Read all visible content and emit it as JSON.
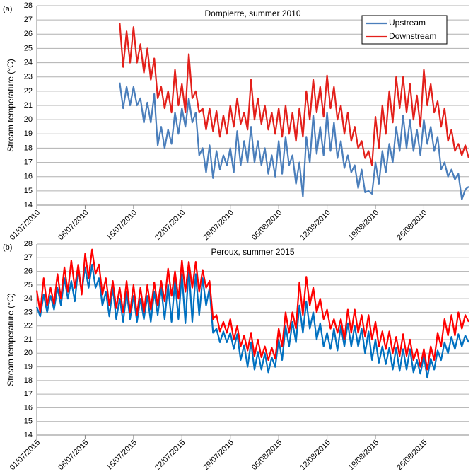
{
  "chart_data": [
    {
      "type": "line",
      "panel_label": "(a)",
      "title": "Dompierre,  summer  2010",
      "y_label": "Stream temperature (°C)",
      "legend": "upper right",
      "grid": true,
      "xlim": [
        0,
        62.5
      ],
      "ylim": [
        14,
        28
      ],
      "yticks": [
        14,
        15,
        16,
        17,
        18,
        19,
        20,
        21,
        22,
        23,
        24,
        25,
        26,
        27,
        28
      ],
      "xticks": [
        {
          "value": 0,
          "label": "01/07/2010"
        },
        {
          "value": 7,
          "label": "08/07/2010"
        },
        {
          "value": 14,
          "label": "15/07/2010"
        },
        {
          "value": 21,
          "label": "22/07/2010"
        },
        {
          "value": 28,
          "label": "29/07/2010"
        },
        {
          "value": 35,
          "label": "05/08/2010"
        },
        {
          "value": 42,
          "label": "12/08/2010"
        },
        {
          "value": 49,
          "label": "19/08/2010"
        },
        {
          "value": 56,
          "label": "26/08/2010"
        }
      ],
      "x": [
        12,
        12.5,
        13,
        13.5,
        14,
        14.5,
        15,
        15.5,
        16,
        16.5,
        17,
        17.5,
        18,
        18.5,
        19,
        19.5,
        20,
        20.5,
        21,
        21.5,
        22,
        22.5,
        23,
        23.5,
        24,
        24.5,
        25,
        25.5,
        26,
        26.5,
        27,
        27.5,
        28,
        28.5,
        29,
        29.5,
        30,
        30.5,
        31,
        31.5,
        32,
        32.5,
        33,
        33.5,
        34,
        34.5,
        35,
        35.5,
        36,
        36.5,
        37,
        37.5,
        38,
        38.5,
        39,
        39.5,
        40,
        40.5,
        41,
        41.5,
        42,
        42.5,
        43,
        43.5,
        44,
        44.5,
        45,
        45.5,
        46,
        46.5,
        47,
        47.5,
        48,
        48.5,
        49,
        49.5,
        50,
        50.5,
        51,
        51.5,
        52,
        52.5,
        53,
        53.5,
        54,
        54.5,
        55,
        55.5,
        56,
        56.5,
        57,
        57.5,
        58,
        58.5,
        59,
        59.5,
        60,
        60.5,
        61,
        61.5,
        62,
        62.5
      ],
      "series": [
        {
          "name": "Upstream",
          "color": "#4a7ebb",
          "values": [
            22.6,
            20.8,
            22.3,
            21,
            22.3,
            21,
            21.5,
            19.8,
            21.2,
            19.8,
            21.8,
            18.2,
            19.5,
            18,
            19.3,
            18.3,
            20.5,
            19,
            20.8,
            19.5,
            21.5,
            19.8,
            20.5,
            17.5,
            18,
            16.3,
            18.2,
            15.9,
            17.8,
            16.5,
            17.5,
            16.8,
            18,
            16.3,
            19.2,
            16.8,
            18.5,
            17,
            19.5,
            17,
            18.5,
            16.8,
            18,
            16.2,
            17.5,
            16,
            18.5,
            16.2,
            18.8,
            16.8,
            17.5,
            15.5,
            17,
            14.6,
            18.8,
            17,
            20.3,
            17.6,
            19.5,
            17.5,
            20.5,
            17.8,
            19.8,
            17.3,
            18.5,
            16.6,
            17.5,
            16.3,
            16.8,
            15.2,
            16.5,
            14.9,
            15,
            14.8,
            17,
            15.5,
            17.8,
            16.3,
            18.3,
            17,
            19.5,
            17.8,
            20.3,
            18,
            20,
            17.8,
            19.3,
            17.5,
            20,
            18.3,
            19.5,
            17.8,
            18.8,
            16.5,
            17,
            16,
            16.5,
            15.8,
            16.2,
            14.4,
            15.1,
            15.3
          ]
        },
        {
          "name": "Downstream",
          "color": "#e3201b",
          "values": [
            26.8,
            23.7,
            26.2,
            24,
            26.5,
            24,
            25.3,
            23.3,
            25,
            22.8,
            24.3,
            21.5,
            22.3,
            20.8,
            22,
            20.5,
            23.5,
            21,
            22.5,
            20.5,
            24.6,
            21.5,
            22,
            20.5,
            20.8,
            19.3,
            20.8,
            19.2,
            20.6,
            18.8,
            20.3,
            19,
            21,
            19.5,
            21.5,
            19.7,
            20.5,
            19.3,
            22.8,
            20,
            21.5,
            19.7,
            21,
            19.3,
            20.5,
            19,
            20.8,
            18.8,
            21,
            19,
            20.5,
            18.5,
            20.8,
            18.8,
            22,
            20,
            22.8,
            20.5,
            22.3,
            20.2,
            23.1,
            20.8,
            22.3,
            20,
            21,
            19,
            20.5,
            18.5,
            19.5,
            18,
            18.5,
            17.3,
            17.8,
            16.8,
            20.2,
            18,
            21,
            19,
            22,
            19.8,
            23,
            20.8,
            23,
            20.5,
            22.5,
            20,
            21.7,
            19.5,
            23.5,
            21,
            22.5,
            20.5,
            21.3,
            19.5,
            20.8,
            18.5,
            19.3,
            17.8,
            18.3,
            17.5,
            18.2,
            17.3
          ]
        }
      ]
    },
    {
      "type": "line",
      "panel_label": "(b)",
      "title": "Peroux, summer 2015",
      "y_label": "Stream temperature (°C)",
      "grid": true,
      "xlim": [
        0,
        62.5
      ],
      "ylim": [
        14,
        28
      ],
      "yticks": [
        14,
        15,
        16,
        17,
        18,
        19,
        20,
        21,
        22,
        23,
        24,
        25,
        26,
        27,
        28
      ],
      "xticks": [
        {
          "value": 0,
          "label": "01/07/2015"
        },
        {
          "value": 7,
          "label": "08/07/2015"
        },
        {
          "value": 14,
          "label": "15/07/2015"
        },
        {
          "value": 21,
          "label": "22/07/2015"
        },
        {
          "value": 28,
          "label": "29/07/2015"
        },
        {
          "value": 35,
          "label": "05/08/2015"
        },
        {
          "value": 42,
          "label": "12/08/2015"
        },
        {
          "value": 49,
          "label": "19/08/2015"
        },
        {
          "value": 56,
          "label": "26/08/2015"
        }
      ],
      "x": [
        0,
        0.5,
        1,
        1.5,
        2,
        2.5,
        3,
        3.5,
        4,
        4.5,
        5,
        5.5,
        6,
        6.5,
        7,
        7.5,
        8,
        8.5,
        9,
        9.5,
        10,
        10.5,
        11,
        11.5,
        12,
        12.5,
        13,
        13.5,
        14,
        14.5,
        15,
        15.5,
        16,
        16.5,
        17,
        17.5,
        18,
        18.5,
        19,
        19.5,
        20,
        20.5,
        21,
        21.5,
        22,
        22.5,
        23,
        23.5,
        24,
        24.5,
        25,
        25.5,
        26,
        26.5,
        27,
        27.5,
        28,
        28.5,
        29,
        29.5,
        30,
        30.5,
        31,
        31.5,
        32,
        32.5,
        33,
        33.5,
        34,
        34.5,
        35,
        35.5,
        36,
        36.5,
        37,
        37.5,
        38,
        38.5,
        39,
        39.5,
        40,
        40.5,
        41,
        41.5,
        42,
        42.5,
        43,
        43.5,
        44,
        44.5,
        45,
        45.5,
        46,
        46.5,
        47,
        47.5,
        48,
        48.5,
        49,
        49.5,
        50,
        50.5,
        51,
        51.5,
        52,
        52.5,
        53,
        53.5,
        54,
        54.5,
        55,
        55.5,
        56,
        56.5,
        57,
        57.5,
        58,
        58.5,
        59,
        59.5,
        60,
        60.5,
        61,
        61.5,
        62,
        62.5
      ],
      "series": [
        {
          "name": "Upstream",
          "color": "#0070c0",
          "values": [
            23.4,
            22.7,
            24.3,
            23,
            24.2,
            23.2,
            24.8,
            23.5,
            25.5,
            24,
            25.3,
            23.8,
            26.2,
            24.5,
            26.3,
            24.8,
            26.5,
            24.8,
            25.5,
            23.5,
            24.5,
            22.7,
            24.8,
            22.5,
            24,
            22.3,
            24.5,
            22.5,
            24.2,
            22.3,
            24,
            22.5,
            24.2,
            22.3,
            24.5,
            22.8,
            24.8,
            22.5,
            25,
            22.3,
            25.3,
            22.5,
            25.8,
            22.2,
            26.3,
            22.3,
            25.8,
            22.8,
            25.5,
            23.5,
            24.8,
            21.5,
            21.8,
            20.8,
            21.6,
            20.8,
            21.5,
            20.3,
            21.4,
            19.5,
            20.6,
            19,
            20.8,
            18.8,
            20.1,
            18.8,
            20,
            18.6,
            19.7,
            19,
            21,
            19.5,
            22,
            20.5,
            22.3,
            20.8,
            23.5,
            21.5,
            23.8,
            21.8,
            23,
            21,
            22.2,
            20.5,
            21.5,
            20.3,
            21.8,
            20.2,
            22,
            20.5,
            22.2,
            20.5,
            22,
            20.5,
            21.8,
            20,
            21.6,
            19.5,
            21,
            19.3,
            20.5,
            19.2,
            20.4,
            18.8,
            20.4,
            18.7,
            20.3,
            18.8,
            20.3,
            18.6,
            19.5,
            18.5,
            19.8,
            18.2,
            19.6,
            18.8,
            20.2,
            19.5,
            20.8,
            20,
            21.2,
            20.3,
            21.4,
            20.5,
            21.3,
            20.8
          ]
        },
        {
          "name": "Downstream",
          "color": "#ff0000",
          "values": [
            24.6,
            23,
            25.5,
            23.5,
            24.8,
            23.6,
            25.8,
            24,
            26.3,
            24.5,
            26.8,
            24.8,
            26.5,
            24.3,
            27.3,
            25.5,
            27.6,
            25.8,
            26.5,
            24.3,
            25.5,
            23.5,
            25.3,
            23.3,
            24.8,
            23,
            25.3,
            23,
            25,
            22.8,
            24.8,
            23,
            25,
            23.2,
            25.2,
            23.5,
            25.3,
            23.8,
            26.2,
            24.2,
            26,
            24,
            26.8,
            24.5,
            26.7,
            24.8,
            26.7,
            24.5,
            26.1,
            24.8,
            25.3,
            22.5,
            22.8,
            21.6,
            22.3,
            21.5,
            22.5,
            21,
            22,
            20.5,
            21.3,
            20.2,
            21.5,
            19.8,
            21,
            19.7,
            20.5,
            19.5,
            20.4,
            19.6,
            21.8,
            20.5,
            23,
            21.5,
            23,
            21.8,
            25.2,
            22.8,
            25.6,
            23.5,
            24.8,
            23,
            24,
            22.5,
            23.2,
            21.8,
            22.5,
            21.5,
            22.5,
            21,
            23.2,
            21.5,
            23.2,
            21.5,
            22.8,
            21.2,
            22.8,
            21,
            22.3,
            20.5,
            21.6,
            20.3,
            21.6,
            20,
            21.2,
            19.8,
            21.4,
            19.8,
            21,
            19.5,
            20.3,
            19,
            20.3,
            18.8,
            20.5,
            19.5,
            21.5,
            20.5,
            22.5,
            21.3,
            22.8,
            21.3,
            23,
            21.8,
            22.8,
            22.3
          ]
        }
      ]
    }
  ]
}
